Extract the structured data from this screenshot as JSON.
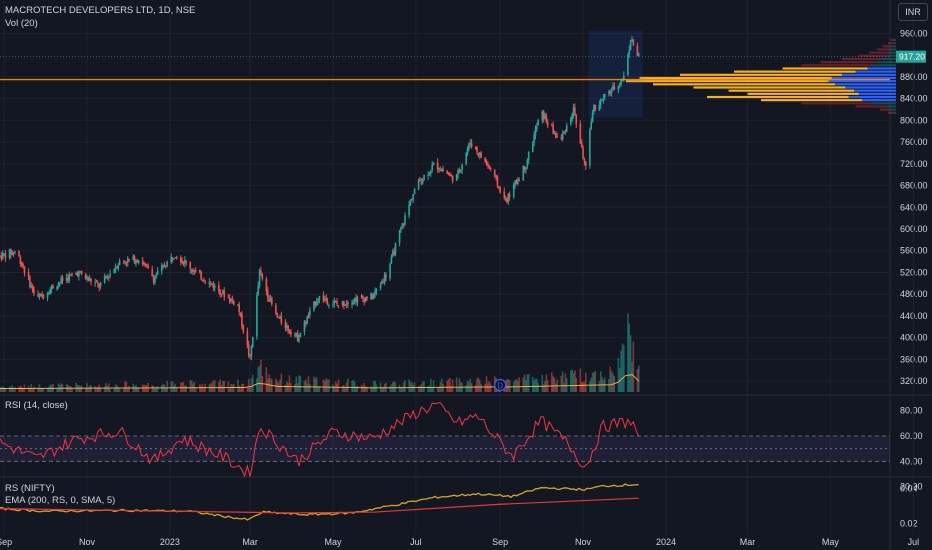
{
  "header": {
    "ticker": "MACROTECH DEVELOPERS LTD, 1D, NSE",
    "volume_label": "Vol (20)",
    "currency_button": "INR",
    "dividend_marker": "D"
  },
  "colors": {
    "background": "#131722",
    "up": "#26a69a",
    "down": "#ef5350",
    "hline": "#f57c00",
    "rsi": "#f23645",
    "rs": "#d4a42c",
    "ema": "#e53935",
    "grid": "#1e222d"
  },
  "chart_data": [
    {
      "type": "candlestick",
      "title": "MACROTECH DEVELOPERS LTD, 1D, NSE",
      "ylabel": "INR",
      "ylim": [
        300,
        970
      ],
      "y_ticks": [
        "960.00",
        "880.00",
        "840.00",
        "800.00",
        "760.00",
        "720.00",
        "680.00",
        "640.00",
        "600.00",
        "560.00",
        "520.00",
        "480.00",
        "440.00",
        "400.00",
        "360.00",
        "320.00"
      ],
      "x_ticks": [
        "Sep",
        "Nov",
        "2023",
        "Mar",
        "May",
        "Jul",
        "Sep",
        "Nov",
        "2024",
        "Mar",
        "May",
        "Jul"
      ],
      "last_price_label": "917.20",
      "last_price": 917.2,
      "horizontal_line": 875,
      "price_path": [
        [
          "2022-08-29",
          550
        ],
        [
          "2022-09-10",
          560
        ],
        [
          "2022-09-25",
          470
        ],
        [
          "2022-10-10",
          500
        ],
        [
          "2022-10-25",
          520
        ],
        [
          "2022-11-10",
          495
        ],
        [
          "2022-11-25",
          540
        ],
        [
          "2022-12-10",
          545
        ],
        [
          "2022-12-20",
          510
        ],
        [
          "2023-01-05",
          555
        ],
        [
          "2023-01-20",
          520
        ],
        [
          "2023-02-05",
          490
        ],
        [
          "2023-02-20",
          460
        ],
        [
          "2023-03-01",
          360
        ],
        [
          "2023-03-08",
          520
        ],
        [
          "2023-03-20",
          440
        ],
        [
          "2023-04-05",
          400
        ],
        [
          "2023-04-20",
          475
        ],
        [
          "2023-05-05",
          460
        ],
        [
          "2023-05-15",
          470
        ],
        [
          "2023-05-30",
          475
        ],
        [
          "2023-06-10",
          520
        ],
        [
          "2023-06-20",
          600
        ],
        [
          "2023-07-01",
          680
        ],
        [
          "2023-07-15",
          720
        ],
        [
          "2023-07-30",
          690
        ],
        [
          "2023-08-10",
          760
        ],
        [
          "2023-08-25",
          710
        ],
        [
          "2023-09-05",
          650
        ],
        [
          "2023-09-20",
          720
        ],
        [
          "2023-10-01",
          815
        ],
        [
          "2023-10-15",
          760
        ],
        [
          "2023-10-25",
          820
        ],
        [
          "2023-11-03",
          710
        ],
        [
          "2023-11-08",
          820
        ],
        [
          "2023-11-20",
          850
        ],
        [
          "2023-12-01",
          880
        ],
        [
          "2023-12-06",
          950
        ],
        [
          "2023-12-12",
          917
        ]
      ],
      "volume_ratio_path": [
        [
          "2022-08-29",
          0.08
        ],
        [
          "2023-02-28",
          0.14
        ],
        [
          "2023-03-08",
          0.4
        ],
        [
          "2023-03-20",
          0.2
        ],
        [
          "2023-06-01",
          0.12
        ],
        [
          "2023-09-15",
          0.18
        ],
        [
          "2023-11-25",
          0.3
        ],
        [
          "2023-12-05",
          1.0
        ],
        [
          "2023-12-12",
          0.5
        ]
      ],
      "volume_profile": {
        "price_range": [
          810,
          950
        ],
        "bar_lengths": [
          0.02,
          0.03,
          0.05,
          0.07,
          0.1,
          0.14,
          0.2,
          0.28,
          0.35,
          0.42,
          0.6,
          0.8,
          0.95,
          1.0,
          0.9,
          0.75,
          0.62,
          0.55,
          0.7,
          0.5,
          0.35,
          0.15,
          0.06,
          0.03
        ]
      }
    },
    {
      "type": "line",
      "title": "RSI (14, close)",
      "ylim": [
        30,
        90
      ],
      "y_ticks": [
        "80.00",
        "60.00",
        "40.00",
        "20.00"
      ],
      "band": [
        40,
        60
      ],
      "path": [
        [
          "2022-08-29",
          55
        ],
        [
          "2022-09-25",
          42
        ],
        [
          "2022-10-25",
          58
        ],
        [
          "2022-11-25",
          64
        ],
        [
          "2022-12-20",
          40
        ],
        [
          "2023-01-10",
          58
        ],
        [
          "2023-02-10",
          43
        ],
        [
          "2023-03-01",
          30
        ],
        [
          "2023-03-08",
          68
        ],
        [
          "2023-04-05",
          40
        ],
        [
          "2023-05-01",
          63
        ],
        [
          "2023-05-30",
          58
        ],
        [
          "2023-07-01",
          78
        ],
        [
          "2023-07-15",
          85
        ],
        [
          "2023-08-01",
          70
        ],
        [
          "2023-08-15",
          76
        ],
        [
          "2023-09-10",
          44
        ],
        [
          "2023-10-01",
          72
        ],
        [
          "2023-10-20",
          55
        ],
        [
          "2023-11-03",
          35
        ],
        [
          "2023-11-15",
          67
        ],
        [
          "2023-12-06",
          72
        ],
        [
          "2023-12-12",
          60
        ]
      ]
    },
    {
      "type": "line",
      "title": "RS (NIFTY)",
      "subtitle": "EMA (200, RS, 0, SMA, 5)",
      "ylim": [
        0.015,
        0.045
      ],
      "y_ticks": [
        "0.04",
        "0.02"
      ],
      "series": [
        {
          "path": [
            [
              "2022-08-29",
              0.0285
            ],
            [
              "2022-10-01",
              0.027
            ],
            [
              "2022-12-01",
              0.0275
            ],
            [
              "2023-01-15",
              0.027
            ],
            [
              "2023-02-28",
              0.022
            ],
            [
              "2023-03-10",
              0.0265
            ],
            [
              "2023-04-10",
              0.025
            ],
            [
              "2023-05-15",
              0.026
            ],
            [
              "2023-06-15",
              0.0305
            ],
            [
              "2023-07-15",
              0.035
            ],
            [
              "2023-08-15",
              0.037
            ],
            [
              "2023-09-10",
              0.0355
            ],
            [
              "2023-10-01",
              0.0405
            ],
            [
              "2023-11-03",
              0.0395
            ],
            [
              "2023-11-15",
              0.0415
            ],
            [
              "2023-12-12",
              0.0425
            ]
          ]
        },
        {
          "path": [
            [
              "2022-08-29",
              0.0285
            ],
            [
              "2023-01-01",
              0.027
            ],
            [
              "2023-04-01",
              0.026
            ],
            [
              "2023-06-01",
              0.0265
            ],
            [
              "2023-09-01",
              0.031
            ],
            [
              "2023-12-12",
              0.0345
            ]
          ]
        }
      ]
    }
  ]
}
